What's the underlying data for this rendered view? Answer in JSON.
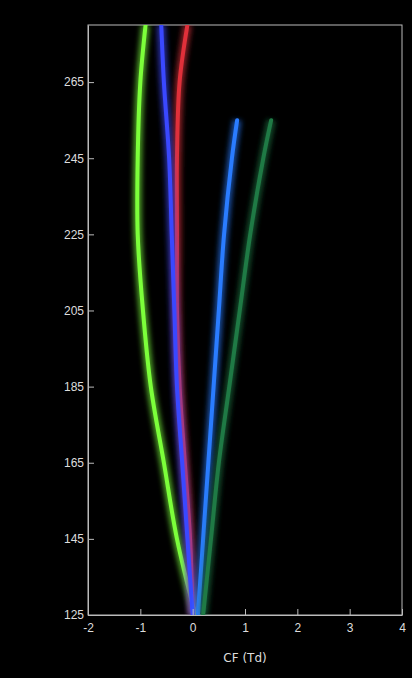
{
  "chart_data": {
    "type": "line",
    "x_label": "CF (Td)",
    "xlim": [
      -2,
      4
    ],
    "xticks": [
      -2,
      -1,
      0,
      1,
      2,
      3,
      4
    ],
    "ylim": [
      125,
      280
    ],
    "yticks": [
      125,
      145,
      165,
      185,
      205,
      225,
      245,
      265
    ],
    "series": [
      {
        "color": "#7cff3a",
        "x": [
          0.05,
          -0.3,
          -0.55,
          -0.8,
          -0.95,
          -1.05,
          -1.05,
          -1.0,
          -0.9
        ],
        "values": [
          125,
          145,
          165,
          185,
          205,
          225,
          245,
          265,
          280
        ]
      },
      {
        "color": "#e0303a",
        "x": [
          0,
          -0.05,
          -0.15,
          -0.25,
          -0.3,
          -0.3,
          -0.3,
          -0.25,
          -0.1
        ],
        "values": [
          125,
          145,
          165,
          185,
          205,
          225,
          245,
          265,
          280
        ]
      },
      {
        "color": "#3a48ff",
        "x": [
          0,
          -0.1,
          -0.2,
          -0.3,
          -0.35,
          -0.4,
          -0.45,
          -0.55,
          -0.6
        ],
        "values": [
          125,
          145,
          165,
          185,
          205,
          225,
          245,
          265,
          280
        ]
      },
      {
        "color": "#2a7cff",
        "x": [
          0.1,
          0.2,
          0.3,
          0.4,
          0.5,
          0.6,
          0.75,
          0.85
        ],
        "values": [
          125,
          145,
          165,
          185,
          205,
          225,
          245,
          255
        ]
      },
      {
        "color": "#1f7a45",
        "x": [
          0.2,
          0.35,
          0.5,
          0.7,
          0.9,
          1.1,
          1.35,
          1.5
        ],
        "values": [
          125,
          145,
          165,
          185,
          205,
          225,
          245,
          255
        ]
      }
    ]
  }
}
